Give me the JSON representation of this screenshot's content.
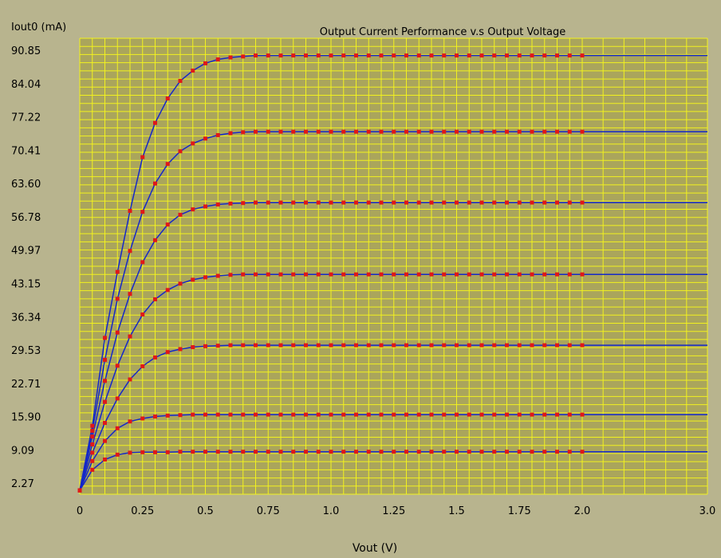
{
  "chart_data": {
    "type": "line",
    "title": "Output Current Performance v.s Output Voltage",
    "ylabel": "Iout0 (mA)",
    "xlabel": "Vout (V)",
    "y_ticks": [
      "2.27",
      "9.09",
      "15.90",
      "22.71",
      "29.53",
      "36.34",
      "43.15",
      "49.97",
      "56.78",
      "63.60",
      "70.41",
      "77.22",
      "84.04",
      "90.85"
    ],
    "x_ticks": [
      "0",
      "0.25",
      "0.5",
      "0.75",
      "1.0",
      "1.25",
      "1.5",
      "1.75",
      "2.0",
      "3.0"
    ],
    "ylim": [
      0,
      93
    ],
    "grid": true,
    "colors": {
      "background": "#b8b48e",
      "plot_bg": "#aaa55c",
      "grid": "#f2f21e",
      "line": "#1428c8",
      "marker": "#e01818"
    },
    "series": [
      {
        "x": [
          0,
          0.05,
          0.1,
          0.15,
          0.2,
          0.25,
          0.3,
          0.35,
          0.4,
          0.45,
          0.5,
          0.55,
          0.6,
          0.65,
          0.7,
          0.75,
          0.8,
          0.85,
          0.9,
          0.95,
          1.0,
          1.05,
          1.1,
          1.15,
          1.2,
          1.25,
          1.3,
          1.35,
          1.4,
          1.45,
          1.5,
          1.55,
          1.6,
          1.65,
          1.7,
          1.75,
          1.8,
          1.85,
          1.9,
          1.95,
          2.0,
          3.0
        ],
        "values": [
          0.8,
          5.0,
          7.1,
          8.1,
          8.5,
          8.6,
          8.6,
          8.6,
          8.7,
          8.7,
          8.7,
          8.7,
          8.7,
          8.7,
          8.7,
          8.7,
          8.7,
          8.7,
          8.7,
          8.7,
          8.7,
          8.7,
          8.7,
          8.7,
          8.7,
          8.7,
          8.7,
          8.7,
          8.7,
          8.7,
          8.7,
          8.7,
          8.7,
          8.7,
          8.7,
          8.7,
          8.7,
          8.7,
          8.7,
          8.7,
          8.7,
          8.7
        ]
      },
      {
        "x": [
          0,
          0.05,
          0.1,
          0.15,
          0.2,
          0.25,
          0.3,
          0.35,
          0.4,
          0.45,
          0.5,
          0.55,
          0.6,
          0.65,
          0.7,
          0.75,
          0.8,
          0.85,
          0.9,
          0.95,
          1.0,
          1.05,
          1.1,
          1.15,
          1.2,
          1.25,
          1.3,
          1.35,
          1.4,
          1.45,
          1.5,
          1.55,
          1.6,
          1.65,
          1.7,
          1.75,
          1.8,
          1.85,
          1.9,
          1.95,
          2.0,
          3.0
        ],
        "values": [
          0.8,
          6.8,
          10.9,
          13.5,
          14.9,
          15.5,
          15.9,
          16.1,
          16.2,
          16.3,
          16.3,
          16.3,
          16.3,
          16.3,
          16.3,
          16.3,
          16.3,
          16.3,
          16.3,
          16.3,
          16.3,
          16.3,
          16.3,
          16.3,
          16.3,
          16.3,
          16.3,
          16.3,
          16.3,
          16.3,
          16.3,
          16.3,
          16.3,
          16.3,
          16.3,
          16.3,
          16.3,
          16.3,
          16.3,
          16.3,
          16.3,
          16.3
        ]
      },
      {
        "x": [
          0,
          0.05,
          0.1,
          0.15,
          0.2,
          0.25,
          0.3,
          0.35,
          0.4,
          0.45,
          0.5,
          0.55,
          0.6,
          0.65,
          0.7,
          0.75,
          0.8,
          0.85,
          0.9,
          0.95,
          1.0,
          1.05,
          1.1,
          1.15,
          1.2,
          1.25,
          1.3,
          1.35,
          1.4,
          1.45,
          1.5,
          1.55,
          1.6,
          1.65,
          1.7,
          1.75,
          1.8,
          1.85,
          1.9,
          1.95,
          2.0,
          3.0
        ],
        "values": [
          0.8,
          8.5,
          14.6,
          19.6,
          23.5,
          26.2,
          28.0,
          29.1,
          29.7,
          30.1,
          30.3,
          30.4,
          30.5,
          30.5,
          30.5,
          30.5,
          30.5,
          30.5,
          30.5,
          30.5,
          30.5,
          30.5,
          30.5,
          30.5,
          30.5,
          30.5,
          30.5,
          30.5,
          30.5,
          30.5,
          30.5,
          30.5,
          30.5,
          30.5,
          30.5,
          30.5,
          30.5,
          30.5,
          30.5,
          30.5,
          30.5,
          30.5
        ]
      },
      {
        "x": [
          0,
          0.05,
          0.1,
          0.15,
          0.2,
          0.25,
          0.3,
          0.35,
          0.4,
          0.45,
          0.5,
          0.55,
          0.6,
          0.65,
          0.7,
          0.75,
          0.8,
          0.85,
          0.9,
          0.95,
          1.0,
          1.05,
          1.1,
          1.15,
          1.2,
          1.25,
          1.3,
          1.35,
          1.4,
          1.45,
          1.5,
          1.55,
          1.6,
          1.65,
          1.7,
          1.75,
          1.8,
          1.85,
          1.9,
          1.95,
          2.0,
          3.0
        ],
        "values": [
          0.8,
          10.2,
          18.9,
          26.3,
          32.3,
          36.8,
          39.9,
          41.8,
          43.1,
          43.9,
          44.4,
          44.7,
          44.9,
          45.0,
          45.0,
          45.0,
          45.0,
          45.0,
          45.0,
          45.0,
          45.0,
          45.0,
          45.0,
          45.0,
          45.0,
          45.0,
          45.0,
          45.0,
          45.0,
          45.0,
          45.0,
          45.0,
          45.0,
          45.0,
          45.0,
          45.0,
          45.0,
          45.0,
          45.0,
          45.0,
          45.0,
          45.0
        ]
      },
      {
        "x": [
          0,
          0.05,
          0.1,
          0.15,
          0.2,
          0.25,
          0.3,
          0.35,
          0.4,
          0.45,
          0.5,
          0.55,
          0.6,
          0.65,
          0.7,
          0.75,
          0.8,
          0.85,
          0.9,
          0.95,
          1.0,
          1.05,
          1.1,
          1.15,
          1.2,
          1.25,
          1.3,
          1.35,
          1.4,
          1.45,
          1.5,
          1.55,
          1.6,
          1.65,
          1.7,
          1.75,
          1.8,
          1.85,
          1.9,
          1.95,
          2.0,
          3.0
        ],
        "values": [
          0.8,
          11.8,
          23.2,
          33.1,
          41.0,
          47.5,
          52.0,
          55.2,
          57.2,
          58.3,
          58.9,
          59.3,
          59.5,
          59.6,
          59.7,
          59.7,
          59.7,
          59.7,
          59.7,
          59.7,
          59.7,
          59.7,
          59.7,
          59.7,
          59.7,
          59.7,
          59.7,
          59.7,
          59.7,
          59.7,
          59.7,
          59.7,
          59.7,
          59.7,
          59.7,
          59.7,
          59.7,
          59.7,
          59.7,
          59.7,
          59.7,
          59.7
        ]
      },
      {
        "x": [
          0,
          0.05,
          0.1,
          0.15,
          0.2,
          0.25,
          0.3,
          0.35,
          0.4,
          0.45,
          0.5,
          0.55,
          0.6,
          0.65,
          0.7,
          0.75,
          0.8,
          0.85,
          0.9,
          0.95,
          1.0,
          1.05,
          1.1,
          1.15,
          1.2,
          1.25,
          1.3,
          1.35,
          1.4,
          1.45,
          1.5,
          1.55,
          1.6,
          1.65,
          1.7,
          1.75,
          1.8,
          1.85,
          1.9,
          1.95,
          2.0,
          3.0
        ],
        "values": [
          0.8,
          13.0,
          27.5,
          40.0,
          49.8,
          57.8,
          63.6,
          67.6,
          70.2,
          71.8,
          72.8,
          73.5,
          73.9,
          74.1,
          74.2,
          74.2,
          74.2,
          74.2,
          74.2,
          74.2,
          74.2,
          74.2,
          74.2,
          74.2,
          74.2,
          74.2,
          74.2,
          74.2,
          74.2,
          74.2,
          74.2,
          74.2,
          74.2,
          74.2,
          74.2,
          74.2,
          74.2,
          74.2,
          74.2,
          74.2,
          74.2,
          74.2
        ]
      },
      {
        "x": [
          0,
          0.05,
          0.1,
          0.15,
          0.2,
          0.25,
          0.3,
          0.35,
          0.4,
          0.45,
          0.5,
          0.55,
          0.6,
          0.65,
          0.7,
          0.75,
          0.8,
          0.85,
          0.9,
          0.95,
          1.0,
          1.05,
          1.1,
          1.15,
          1.2,
          1.25,
          1.3,
          1.35,
          1.4,
          1.45,
          1.5,
          1.55,
          1.6,
          1.65,
          1.7,
          1.75,
          1.8,
          1.85,
          1.9,
          1.95,
          2.0,
          3.0
        ],
        "values": [
          0.8,
          14.0,
          32.0,
          45.5,
          58.0,
          69.0,
          76.0,
          81.0,
          84.6,
          86.7,
          88.2,
          89.0,
          89.4,
          89.6,
          89.8,
          89.8,
          89.8,
          89.8,
          89.8,
          89.8,
          89.8,
          89.8,
          89.8,
          89.8,
          89.8,
          89.8,
          89.8,
          89.8,
          89.8,
          89.8,
          89.8,
          89.8,
          89.8,
          89.8,
          89.8,
          89.8,
          89.8,
          89.8,
          89.8,
          89.8,
          89.8,
          89.8
        ]
      }
    ]
  }
}
